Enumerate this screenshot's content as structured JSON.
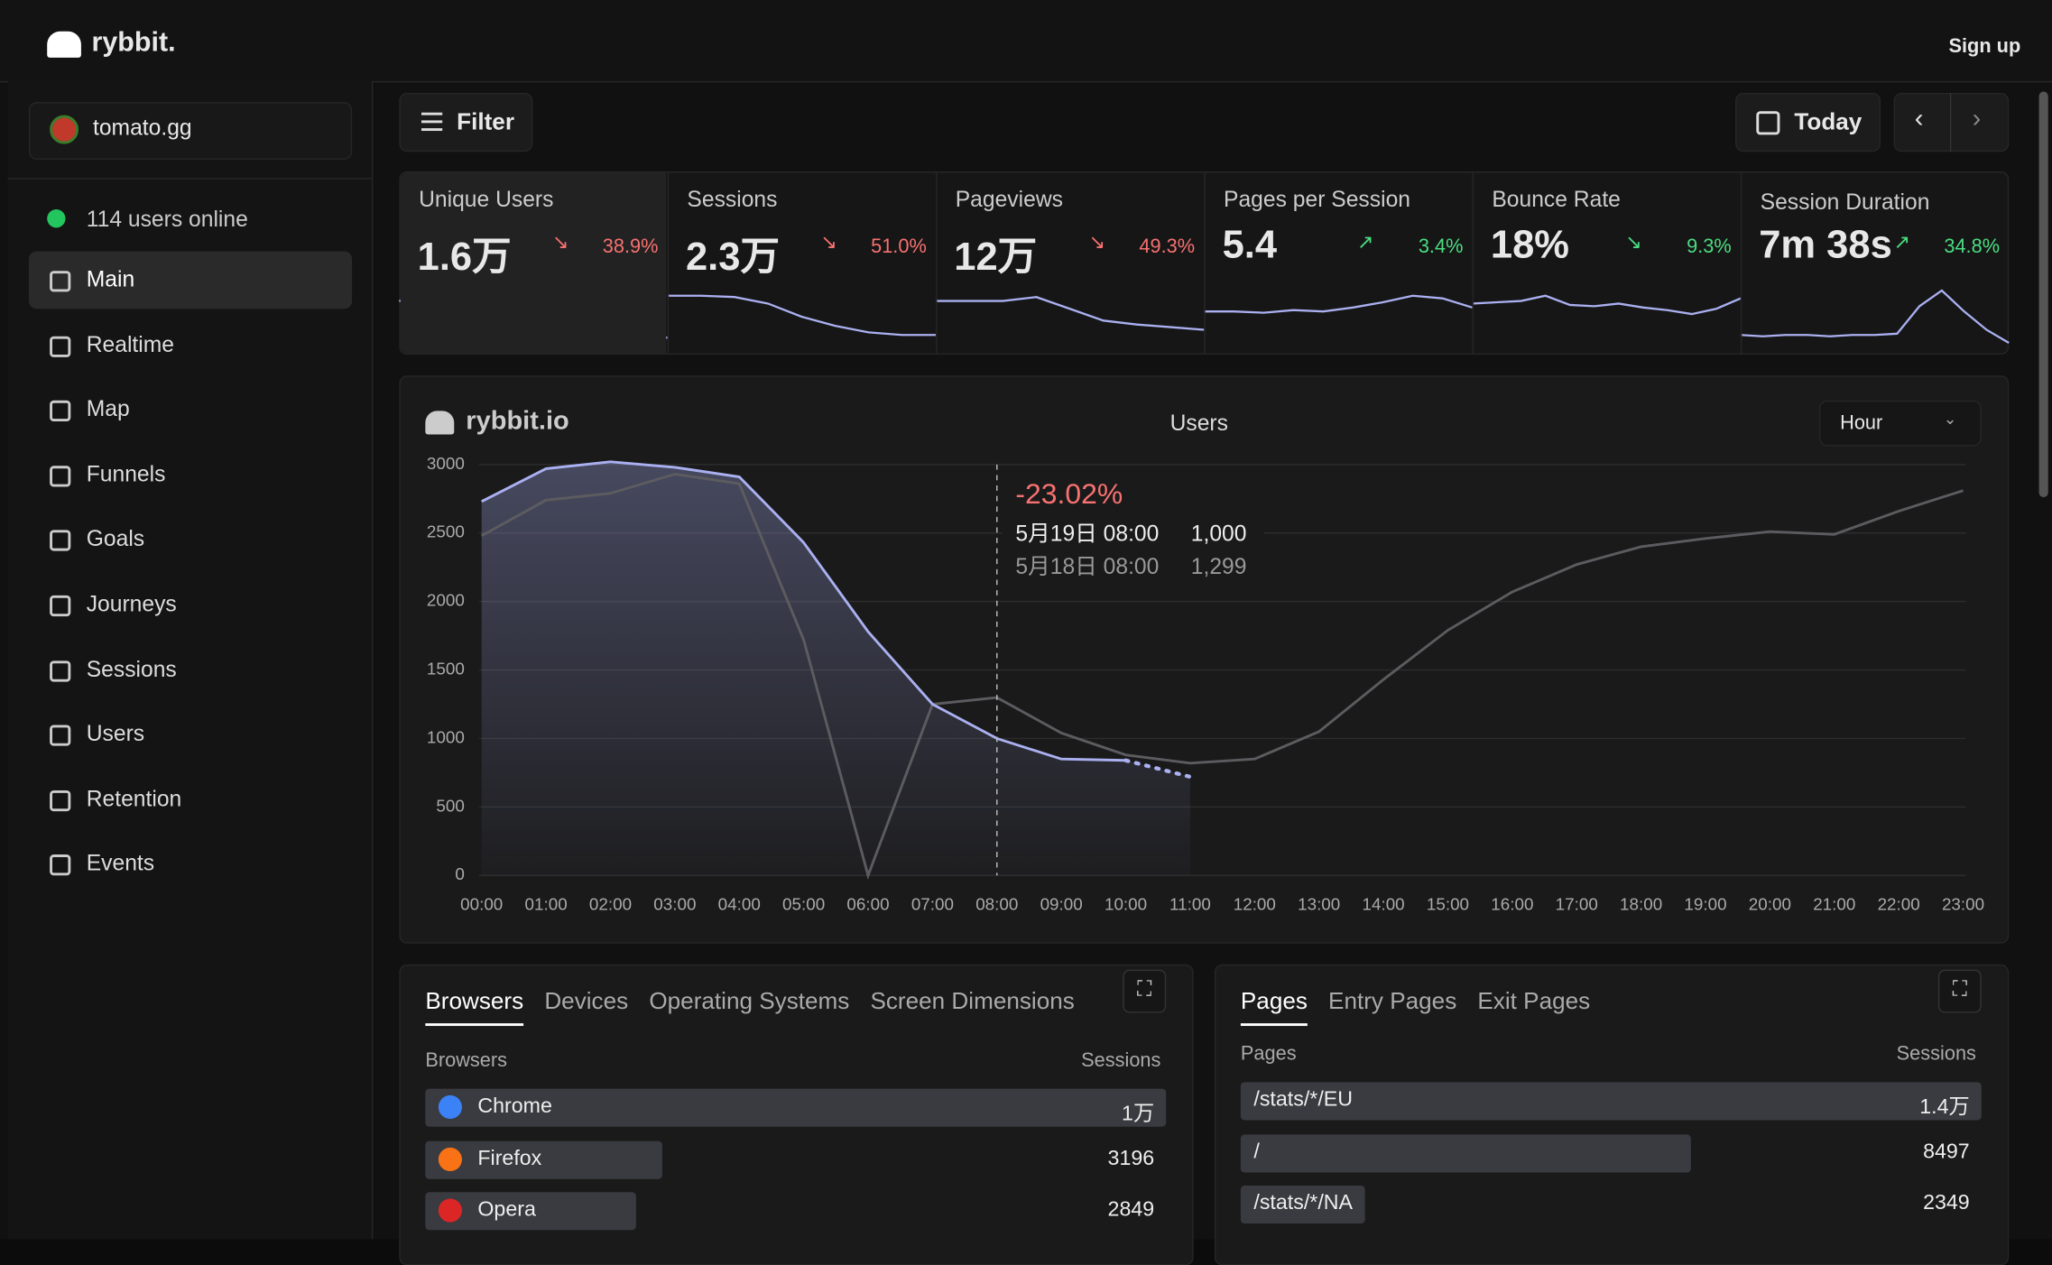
{
  "header": {
    "brand": "rybbit.",
    "signup": "Sign up"
  },
  "sidebar": {
    "site": "tomato.gg",
    "online": "114 users online",
    "nav": [
      "Main",
      "Realtime",
      "Map",
      "Funnels",
      "Goals",
      "Journeys",
      "Sessions",
      "Users",
      "Retention",
      "Events"
    ],
    "active": 0
  },
  "toolbar": {
    "filter": "Filter",
    "date": "Today"
  },
  "stats": [
    {
      "label": "Unique Users",
      "value": "1.6万",
      "change": "38.9%",
      "trend": "down",
      "color": "#f87171",
      "spark": [
        38,
        41,
        40,
        32,
        17,
        13,
        11,
        10,
        10
      ]
    },
    {
      "label": "Sessions",
      "value": "2.3万",
      "change": "51.0%",
      "trend": "down",
      "color": "#f87171",
      "spark": [
        42,
        42,
        41,
        36,
        26,
        19,
        14,
        12,
        12
      ]
    },
    {
      "label": "Pageviews",
      "value": "12万",
      "change": "49.3%",
      "trend": "down",
      "color": "#f87171",
      "spark": [
        38,
        38,
        38,
        41,
        32,
        23,
        20,
        18,
        16
      ]
    },
    {
      "label": "Pages per Session",
      "value": "5.4",
      "change": "3.4%",
      "trend": "up",
      "color": "#4ade80",
      "spark": [
        30,
        30,
        29,
        31,
        30,
        33,
        37,
        42,
        40,
        33
      ]
    },
    {
      "label": "Bounce Rate",
      "value": "18%",
      "change": "9.3%",
      "trend": "down",
      "color": "#4ade80",
      "spark": [
        36,
        37,
        38,
        42,
        35,
        34,
        36,
        33,
        31,
        28,
        32,
        40
      ]
    },
    {
      "label": "Session Duration",
      "value": "7m 38s",
      "change": "34.8%",
      "trend": "up",
      "color": "#4ade80",
      "spark": [
        12,
        11,
        12,
        12,
        11,
        12,
        12,
        13,
        34,
        46,
        30,
        16,
        6
      ]
    }
  ],
  "chart_data": {
    "type": "line",
    "brand": "rybbit.io",
    "title": "Users",
    "granularity": "Hour",
    "x": [
      "00:00",
      "01:00",
      "02:00",
      "03:00",
      "04:00",
      "05:00",
      "06:00",
      "07:00",
      "08:00",
      "09:00",
      "10:00",
      "11:00",
      "12:00",
      "13:00",
      "14:00",
      "15:00",
      "16:00",
      "17:00",
      "18:00",
      "19:00",
      "20:00",
      "21:00",
      "22:00",
      "23:00"
    ],
    "series": [
      {
        "color": "#aab0f0",
        "values": [
          2730,
          2970,
          3020,
          2980,
          2910,
          2430,
          1780,
          1250,
          1000,
          850,
          840,
          720,
          null,
          null,
          null,
          null,
          null,
          null,
          null,
          null,
          null,
          null,
          null,
          null
        ],
        "dotted_from": 10
      },
      {
        "color": "#5c5c60",
        "values": [
          2480,
          2740,
          2790,
          2930,
          2860,
          1720,
          0,
          1250,
          1299,
          1040,
          880,
          820,
          850,
          1050,
          1430,
          1790,
          2070,
          2270,
          2400,
          2460,
          2510,
          2490,
          2660,
          2810
        ]
      }
    ],
    "ylim": [
      0,
      3000
    ],
    "yticks": [
      0,
      500,
      1000,
      1500,
      2000,
      2500,
      3000
    ],
    "grid": true,
    "tooltip": {
      "index": 8,
      "change": "-23.02%",
      "rows": [
        {
          "date": "5月19日 08:00",
          "value": "1,000"
        },
        {
          "date": "5月18日 08:00",
          "value": "1,299"
        }
      ]
    }
  },
  "browsers": {
    "tabs": [
      "Browsers",
      "Devices",
      "Operating Systems",
      "Screen Dimensions"
    ],
    "col1": "Browsers",
    "col2": "Sessions",
    "max": 10000,
    "rows": [
      {
        "name": "Chrome",
        "value": 10000,
        "label": "1万"
      },
      {
        "name": "Firefox",
        "value": 3196
      },
      {
        "name": "Opera",
        "value": 2849
      }
    ]
  },
  "pages": {
    "tabs": [
      "Pages",
      "Entry Pages",
      "Exit Pages"
    ],
    "col1": "Pages",
    "col2": "Sessions",
    "max": 14000,
    "rows": [
      {
        "name": "/stats/*/EU",
        "value": 14000,
        "label": "1.4万"
      },
      {
        "name": "/",
        "value": 8497
      },
      {
        "name": "/stats/*/NA",
        "value": 2349
      }
    ]
  }
}
